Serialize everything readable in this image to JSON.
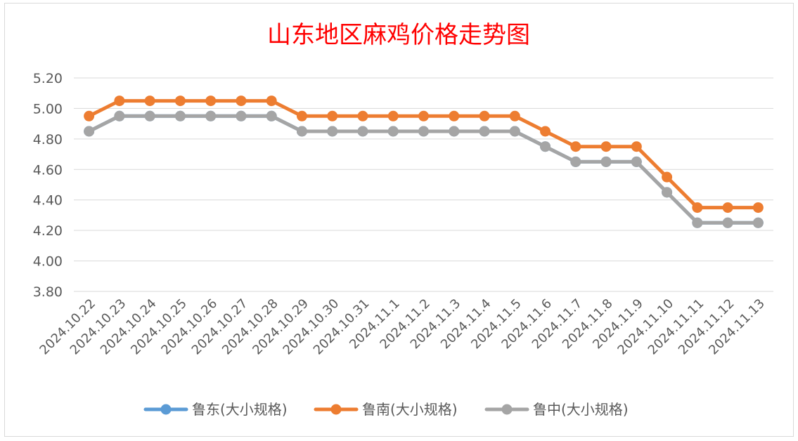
{
  "chart_data": {
    "type": "line",
    "title": "山东地区麻鸡价格走势图",
    "categories": [
      "2024.10.22",
      "2024.10.23",
      "2024.10.24",
      "2024.10.25",
      "2024.10.26",
      "2024.10.27",
      "2024.10.28",
      "2024.10.29",
      "2024.10.30",
      "2024.10.31",
      "2024.11.1",
      "2024.11.2",
      "2024.11.3",
      "2024.11.4",
      "2024.11.5",
      "2024.11.6",
      "2024.11.7",
      "2024.11.8",
      "2024.11.9",
      "2024.11.10",
      "2024.11.11",
      "2024.11.12",
      "2024.11.13"
    ],
    "series": [
      {
        "name": "鲁东(大小规格)",
        "color": "#5b9bd5",
        "values": [
          4.85,
          4.95,
          4.95,
          4.95,
          4.95,
          4.95,
          4.95,
          4.85,
          4.85,
          4.85,
          4.85,
          4.85,
          4.85,
          4.85,
          4.85,
          4.75,
          4.65,
          4.65,
          4.65,
          4.45,
          4.25,
          4.25,
          4.25
        ]
      },
      {
        "name": "鲁南(大小规格)",
        "color": "#ed7d31",
        "values": [
          4.95,
          5.05,
          5.05,
          5.05,
          5.05,
          5.05,
          5.05,
          4.95,
          4.95,
          4.95,
          4.95,
          4.95,
          4.95,
          4.95,
          4.95,
          4.85,
          4.75,
          4.75,
          4.75,
          4.55,
          4.35,
          4.35,
          4.35
        ]
      },
      {
        "name": "鲁中(大小规格)",
        "color": "#a5a5a5",
        "values": [
          4.85,
          4.95,
          4.95,
          4.95,
          4.95,
          4.95,
          4.95,
          4.85,
          4.85,
          4.85,
          4.85,
          4.85,
          4.85,
          4.85,
          4.85,
          4.75,
          4.65,
          4.65,
          4.65,
          4.45,
          4.25,
          4.25,
          4.25
        ]
      }
    ],
    "yticks": [
      "3.80",
      "4.00",
      "4.20",
      "4.40",
      "4.60",
      "4.80",
      "5.00",
      "5.20"
    ],
    "ylim": [
      3.8,
      5.2
    ],
    "xlabel": "",
    "ylabel": "",
    "grid": true,
    "legend_position": "bottom"
  }
}
